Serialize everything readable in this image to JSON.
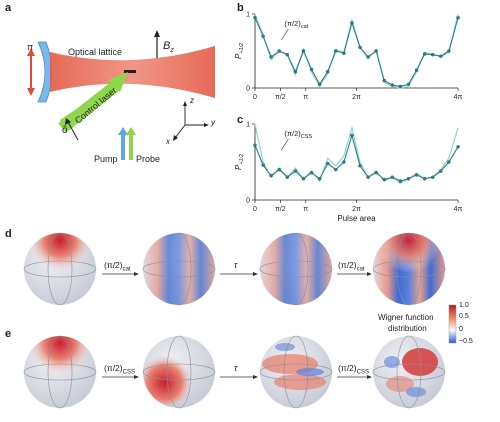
{
  "panels": {
    "a": "a",
    "b": "b",
    "c": "c",
    "d": "d",
    "e": "e"
  },
  "schematic": {
    "pi_label": "π",
    "optical_lattice": "Optical lattice",
    "bz_label": "B",
    "bz_sub": "z",
    "control_laser": "Control laser",
    "o_hat": "ô",
    "pump": "Pump",
    "probe": "Probe",
    "axis_z": "z",
    "axis_x": "x",
    "axis_y": "y",
    "colors": {
      "lattice": "#e8604c",
      "mirror": "#6fb2e6",
      "control": "#8ed64a",
      "pump": "#5fa6e6",
      "probe": "#8ed64a",
      "arrow_red": "#e04a3a"
    }
  },
  "chart_data": [
    {
      "panel": "b",
      "type": "line",
      "ylabel": "P",
      "ylabel_sub": "+1/2",
      "xlabel": "",
      "xlim": [
        0,
        12.566
      ],
      "ylim": [
        0,
        1
      ],
      "yticks": [
        "0",
        "1"
      ],
      "xticks": [
        {
          "v": 0,
          "l": "0"
        },
        {
          "v": 1.571,
          "l": "π/2"
        },
        {
          "v": 3.142,
          "l": "π"
        },
        {
          "v": 6.283,
          "l": "2π"
        },
        {
          "v": 12.566,
          "l": "4π"
        }
      ],
      "annotation": "(π/2)",
      "annotation_sub": "cat",
      "annotation_x": 1.571,
      "series": [
        {
          "style": "theory",
          "color": "#8fd8c8",
          "x": [
            0,
            0.5,
            1,
            1.5,
            2,
            2.5,
            3,
            3.5,
            4,
            4.5,
            5,
            5.5,
            6,
            6.5,
            7,
            7.5,
            8,
            8.5,
            9,
            9.5,
            10,
            10.5,
            11,
            11.5,
            12,
            12.57
          ],
          "values": [
            1.0,
            0.72,
            0.38,
            0.5,
            0.46,
            0.18,
            0.52,
            0.22,
            0.02,
            0.2,
            0.52,
            0.48,
            0.92,
            0.55,
            0.4,
            0.52,
            0.08,
            0.02,
            0.0,
            0.02,
            0.22,
            0.48,
            0.46,
            0.42,
            0.48,
            1.0
          ]
        },
        {
          "style": "data",
          "color": "#2d7c8a",
          "x": [
            0,
            0.5,
            1,
            1.5,
            2,
            2.5,
            3,
            3.5,
            4,
            4.5,
            5,
            5.5,
            6,
            6.5,
            7,
            7.5,
            8,
            8.5,
            9,
            9.5,
            10,
            10.5,
            11,
            11.5,
            12,
            12.57
          ],
          "values": [
            0.95,
            0.7,
            0.42,
            0.5,
            0.45,
            0.22,
            0.5,
            0.25,
            0.05,
            0.22,
            0.5,
            0.47,
            0.88,
            0.55,
            0.42,
            0.5,
            0.1,
            0.04,
            0.02,
            0.05,
            0.24,
            0.46,
            0.45,
            0.43,
            0.5,
            0.95
          ]
        }
      ]
    },
    {
      "panel": "c",
      "type": "line",
      "ylabel": "P",
      "ylabel_sub": "+1/2",
      "xlabel": "Pulse area",
      "xlim": [
        0,
        12.566
      ],
      "ylim": [
        0,
        1
      ],
      "yticks": [
        "0",
        "1"
      ],
      "xticks": [
        {
          "v": 0,
          "l": "0"
        },
        {
          "v": 1.571,
          "l": "π/2"
        },
        {
          "v": 3.142,
          "l": "π"
        },
        {
          "v": 6.283,
          "l": "2π"
        },
        {
          "v": 12.566,
          "l": "4π"
        }
      ],
      "annotation": "(π/2)",
      "annotation_sub": "CSS",
      "annotation_x": 1.571,
      "series": [
        {
          "style": "theory",
          "color": "#8fd8c8",
          "x": [
            0,
            0.5,
            1,
            1.5,
            2,
            2.5,
            3,
            3.5,
            4,
            4.5,
            5,
            5.5,
            6,
            6.5,
            7,
            7.5,
            8,
            8.5,
            9,
            9.5,
            10,
            10.5,
            11,
            11.5,
            12,
            12.57
          ],
          "values": [
            1.0,
            0.5,
            0.3,
            0.42,
            0.3,
            0.42,
            0.28,
            0.38,
            0.25,
            0.55,
            0.45,
            0.58,
            0.95,
            0.5,
            0.3,
            0.38,
            0.25,
            0.3,
            0.22,
            0.28,
            0.35,
            0.28,
            0.3,
            0.4,
            0.55,
            0.95
          ]
        },
        {
          "style": "data",
          "color": "#2d7c8a",
          "x": [
            0,
            0.5,
            1,
            1.5,
            2,
            2.5,
            3,
            3.5,
            4,
            4.5,
            5,
            5.5,
            6,
            6.5,
            7,
            7.5,
            8,
            8.5,
            9,
            9.5,
            10,
            10.5,
            11,
            11.5,
            12,
            12.57
          ],
          "values": [
            0.72,
            0.46,
            0.32,
            0.4,
            0.3,
            0.38,
            0.28,
            0.36,
            0.28,
            0.48,
            0.4,
            0.5,
            0.85,
            0.45,
            0.3,
            0.36,
            0.27,
            0.3,
            0.25,
            0.28,
            0.33,
            0.28,
            0.3,
            0.38,
            0.5,
            0.7
          ]
        }
      ]
    }
  ],
  "row_d": {
    "labels": [
      {
        "main": "(π/2)",
        "sub": "cat"
      },
      {
        "main": "τ",
        "sub": ""
      },
      {
        "main": "(π/2)",
        "sub": "cat"
      }
    ]
  },
  "row_e": {
    "labels": [
      {
        "main": "(π/2)",
        "sub": "CSS"
      },
      {
        "main": "τ",
        "sub": ""
      },
      {
        "main": "(π/2)",
        "sub": "CSS"
      }
    ]
  },
  "colorbar": {
    "ticks": [
      "1.0",
      "0.5",
      "0",
      "−0.5"
    ],
    "title_line1": "Wigner function",
    "title_line2": "distribution",
    "colors": {
      "top": "#b2182b",
      "mid": "#f7f7f7",
      "bottom": "#2c5fd6"
    }
  }
}
